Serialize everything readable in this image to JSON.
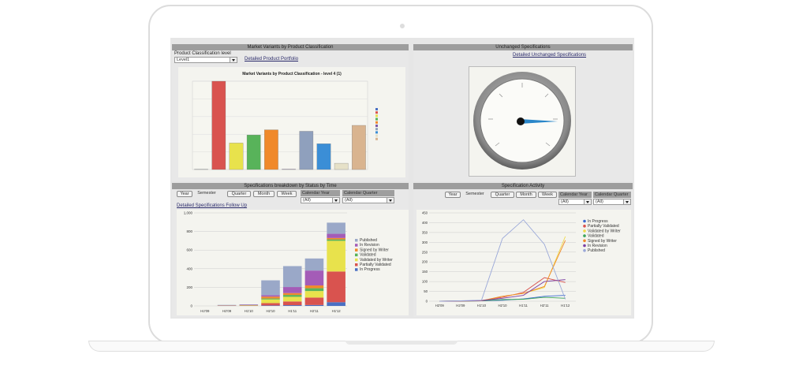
{
  "market": {
    "panel_title": "Market Variants by Product Classification",
    "level_label": "Product Classification level",
    "level_value": "Level1",
    "link": "Detailed Product Portfolio",
    "chart_data": {
      "type": "bar",
      "title": "Market Variants by Product Classification - level 4 (1)",
      "values": [
        2,
        1200,
        360,
        470,
        540,
        5,
        520,
        350,
        85,
        600
      ],
      "colors": [
        "#4a6fc3",
        "#d9534f",
        "#e8e24c",
        "#58b35a",
        "#f0892a",
        "#7d5aa8",
        "#8fa0bd",
        "#3b8ed6",
        "#e6e1c8",
        "#d9b48f"
      ],
      "ylim": [
        0,
        1200
      ]
    }
  },
  "unchanged": {
    "panel_title": "Unchanged Specifications",
    "link": "Detailed Unchanged Specifications"
  },
  "breakdown": {
    "panel_title": "Specifications breakdown by Status by Time",
    "buttons": [
      "Year",
      "Semester",
      "Quarter",
      "Month",
      "Week"
    ],
    "calendar_year_label": "Calendar Year",
    "calendar_year_value": "(All)",
    "calendar_quarter_label": "Calendar Quarter",
    "calendar_quarter_value": "(All)",
    "link": "Detailed Specifications Follow Up",
    "chart_data": {
      "type": "bar",
      "categories": [
        "H2'09",
        "H2'09",
        "H1'10",
        "H2'10",
        "H1'11",
        "H2'11",
        "H1'12"
      ],
      "ylim": [
        0,
        1000
      ],
      "yticks": [
        "0",
        "200",
        "400",
        "600",
        "800",
        "1,000"
      ],
      "series": [
        {
          "name": "In Progress",
          "color": "#4a6fc3",
          "values": [
            0,
            0,
            0,
            5,
            8,
            10,
            40
          ]
        },
        {
          "name": "Partially Validated",
          "color": "#d9534f",
          "values": [
            0,
            2,
            3,
            25,
            40,
            80,
            330
          ]
        },
        {
          "name": "Validated by Writer",
          "color": "#e8e24c",
          "values": [
            0,
            1,
            2,
            40,
            50,
            70,
            330
          ]
        },
        {
          "name": "Validated",
          "color": "#58b35a",
          "values": [
            0,
            1,
            2,
            10,
            20,
            30,
            15
          ]
        },
        {
          "name": "Signed by Writer",
          "color": "#f0892a",
          "values": [
            0,
            1,
            2,
            20,
            20,
            30,
            15
          ]
        },
        {
          "name": "In Revision",
          "color": "#a45cb7",
          "values": [
            0,
            3,
            4,
            15,
            65,
            160,
            45
          ]
        },
        {
          "name": "Published",
          "color": "#9aa8c8",
          "values": [
            0,
            3,
            4,
            160,
            225,
            130,
            120
          ]
        }
      ]
    }
  },
  "activity": {
    "panel_title": "Specification Activity",
    "buttons": [
      "Year",
      "Semester",
      "Quarter",
      "Month",
      "Week"
    ],
    "calendar_year_label": "Calendar Year",
    "calendar_year_value": "(All)",
    "calendar_quarter_label": "Calendar Quarter",
    "calendar_quarter_value": "(All)",
    "chart_data": {
      "type": "line",
      "categories": [
        "H2'09",
        "H2'09",
        "H1'10",
        "H2'10",
        "H1'11",
        "H2'11",
        "H1'12"
      ],
      "ylim": [
        0,
        450
      ],
      "yticks": [
        "0",
        "50",
        "100",
        "150",
        "200",
        "250",
        "300",
        "350",
        "400",
        "450"
      ],
      "series": [
        {
          "name": "In Progress",
          "color": "#3b6ad0",
          "values": [
            0,
            0,
            2,
            5,
            12,
            25,
            30
          ]
        },
        {
          "name": "Partially Validated",
          "color": "#d9534f",
          "values": [
            0,
            1,
            3,
            20,
            45,
            120,
            95
          ]
        },
        {
          "name": "Validated by Writer",
          "color": "#f0d94a",
          "values": [
            0,
            1,
            2,
            25,
            40,
            70,
            330
          ]
        },
        {
          "name": "Validated",
          "color": "#3aa35a",
          "values": [
            0,
            1,
            2,
            8,
            10,
            20,
            15
          ]
        },
        {
          "name": "Signed by Writer",
          "color": "#f0892a",
          "values": [
            0,
            1,
            2,
            25,
            40,
            75,
            310
          ]
        },
        {
          "name": "In Revision",
          "color": "#7c3fa3",
          "values": [
            0,
            1,
            3,
            15,
            30,
            100,
            110
          ]
        },
        {
          "name": "Published",
          "color": "#9aa8d8",
          "values": [
            0,
            2,
            5,
            320,
            415,
            290,
            10
          ]
        }
      ]
    }
  }
}
